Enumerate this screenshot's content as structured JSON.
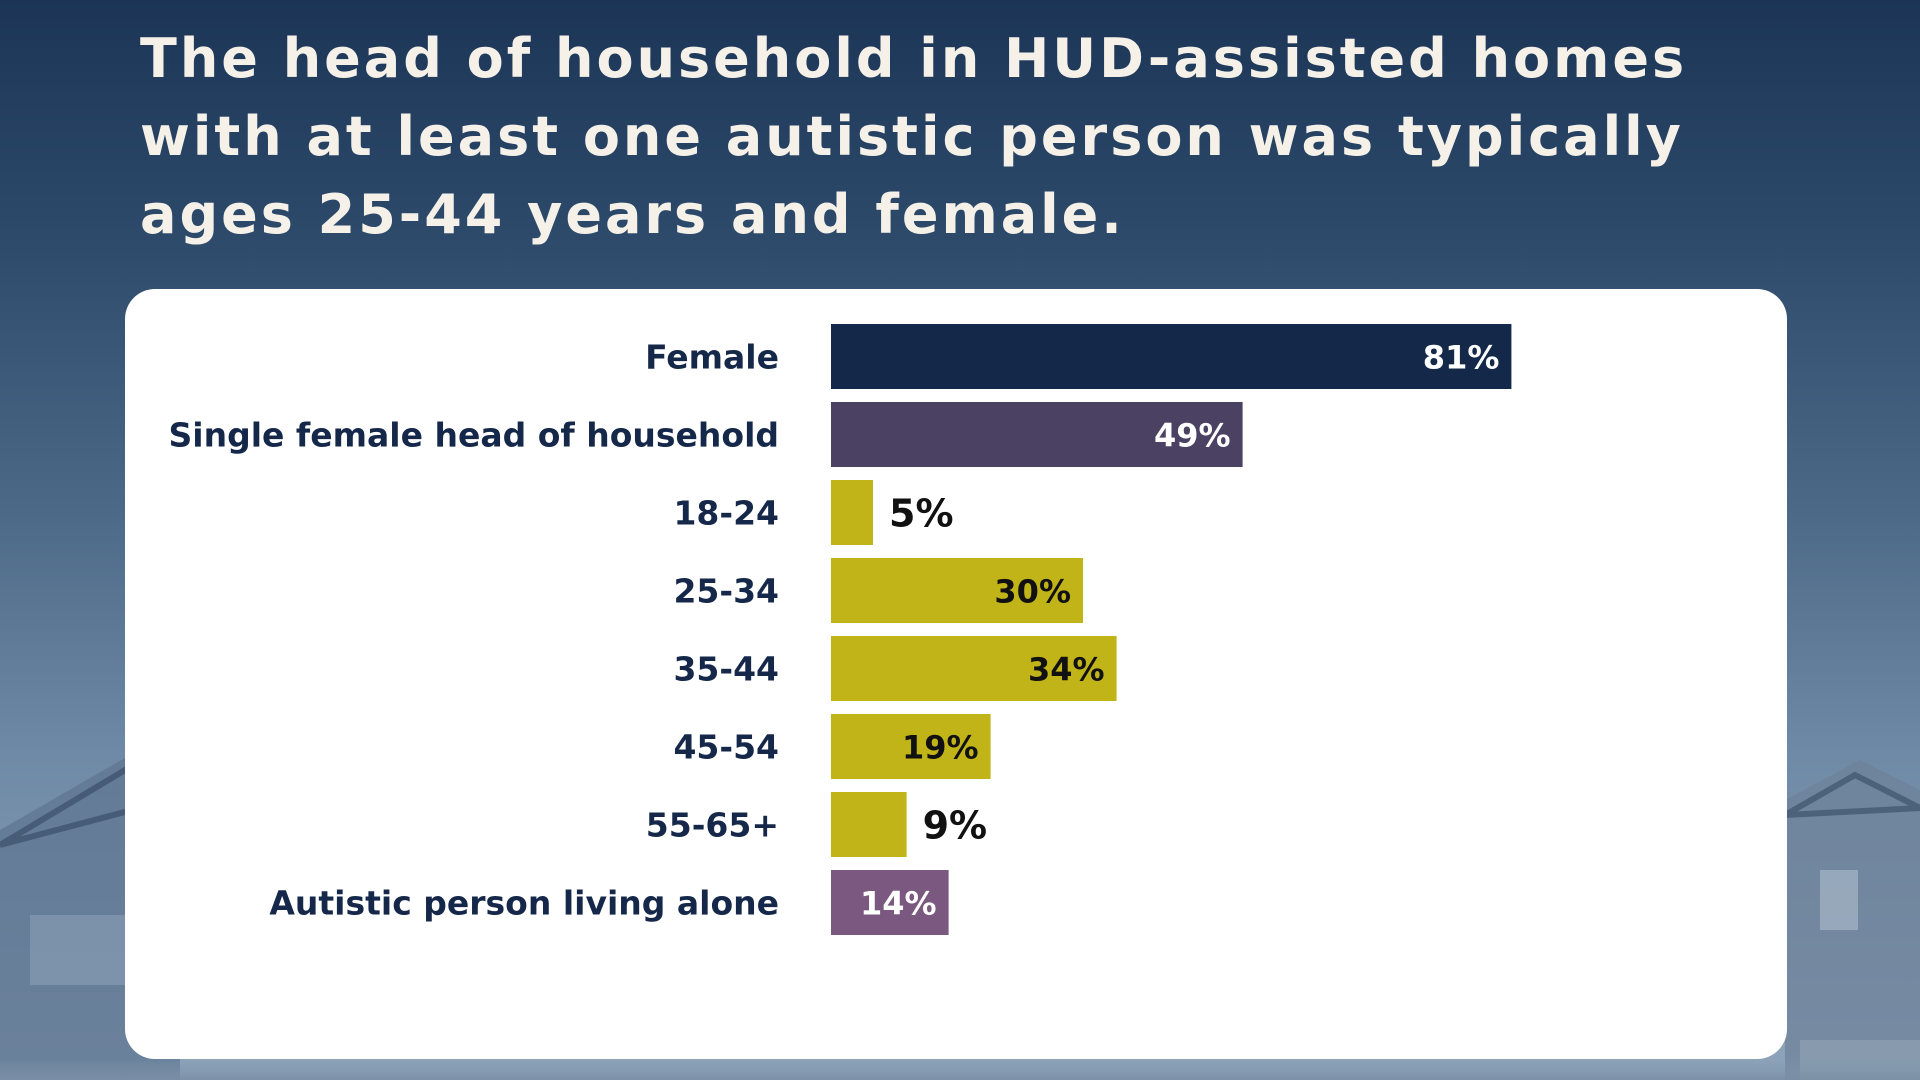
{
  "headline": {
    "line1": "The head of household in HUD-assisted homes",
    "line2": "with at least one autistic person was typically",
    "line3": "ages 25-44 years and female."
  },
  "colors": {
    "navy": "#14294a",
    "plum": "#4b4163",
    "olive": "#c1b418",
    "mauve": "#7a5880",
    "card": "#ffffff",
    "label": "#15284a"
  },
  "chart_data": {
    "type": "bar",
    "orientation": "horizontal",
    "title": "The head of household in HUD-assisted homes with at least one autistic person was typically ages 25-44 years and female.",
    "xlabel": "",
    "ylabel": "",
    "xlim": [
      0,
      100
    ],
    "grid": false,
    "unit": "%",
    "categories": [
      "Female",
      "Single female head of household",
      "18-24",
      "25-34",
      "35-44",
      "45-54",
      "55-65+",
      "Autistic person living alone"
    ],
    "values": [
      81,
      49,
      5,
      30,
      34,
      19,
      9,
      14
    ],
    "value_labels": [
      "81%",
      "49%",
      "5%",
      "30%",
      "34%",
      "19%",
      "9%",
      "14%"
    ],
    "bar_colors": [
      "#14294a",
      "#4b4163",
      "#c1b418",
      "#c1b418",
      "#c1b418",
      "#c1b418",
      "#c1b418",
      "#7a5880"
    ]
  }
}
